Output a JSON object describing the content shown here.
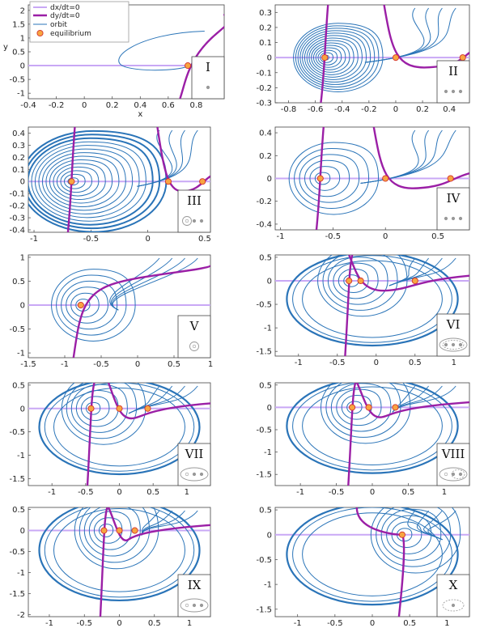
{
  "legend": {
    "items": [
      {
        "label": "dx/dt=0",
        "color": "#c9a8f5",
        "kind": "line"
      },
      {
        "label": "dy/dt=0",
        "color": "#9b1fa6",
        "kind": "line"
      },
      {
        "label": "orbit",
        "color": "#2a74b8",
        "kind": "line"
      },
      {
        "label": "equilibrium",
        "color": "#f7a541",
        "kind": "marker"
      }
    ]
  },
  "colors": {
    "orbit": "#2a74b8",
    "xnull": "#c9a8f5",
    "ynull": "#9b1fa6",
    "eq_fill": "#f7a541",
    "eq_stroke": "#d4322c",
    "inset": "#999999"
  },
  "chart_data": [
    {
      "id": "I",
      "type": "line",
      "xlabel": "x",
      "ylabel": "y",
      "xlim": [
        -0.4,
        1.0
      ],
      "ylim": [
        -1.2,
        2.2
      ],
      "xticks": [
        "-0.4",
        "-0.2",
        "0",
        "0.2",
        "0.4",
        "0.6",
        "0.8"
      ],
      "yticks": [
        "-1",
        "-0.5",
        "0",
        "0.5",
        "1",
        "1.5",
        "2"
      ],
      "equilibria": [
        [
          0.74,
          0.0
        ]
      ],
      "inset_dots": 1,
      "inset_ring": "none"
    },
    {
      "id": "II",
      "type": "line",
      "xlim": [
        -0.9,
        0.55
      ],
      "ylim": [
        -0.3,
        0.35
      ],
      "xticks": [
        "-0.8",
        "-0.6",
        "-0.4",
        "-0.2",
        "0",
        "0.2",
        "0.4"
      ],
      "yticks": [
        "-0.3",
        "-0.2",
        "-0.1",
        "0",
        "0.1",
        "0.2",
        "0.3"
      ],
      "equilibria": [
        [
          -0.53,
          0.0
        ],
        [
          0.0,
          0.0
        ],
        [
          0.5,
          0.0
        ]
      ],
      "inset_dots": 3,
      "inset_ring": "none"
    },
    {
      "id": "III",
      "type": "line",
      "xlim": [
        -1.05,
        0.55
      ],
      "ylim": [
        -0.42,
        0.45
      ],
      "xticks": [
        "-1",
        "-0.5",
        "0",
        "0.5"
      ],
      "yticks": [
        "-0.4",
        "-0.3",
        "-0.2",
        "-0.1",
        "0",
        "0.1",
        "0.2",
        "0.3",
        "0.4"
      ],
      "equilibria": [
        [
          -0.67,
          0.0
        ],
        [
          0.18,
          0.0
        ],
        [
          0.48,
          0.0
        ]
      ],
      "inset_dots": 3,
      "inset_ring": "first"
    },
    {
      "id": "IV",
      "type": "line",
      "xlim": [
        -1.05,
        0.8
      ],
      "ylim": [
        -0.45,
        0.45
      ],
      "xticks": [
        "-1",
        "-0.5",
        "0",
        "0.5"
      ],
      "yticks": [
        "-0.4",
        "-0.2",
        "0",
        "0.2",
        "0.4"
      ],
      "equilibria": [
        [
          -0.62,
          0.0
        ],
        [
          0.0,
          0.0
        ],
        [
          0.62,
          0.0
        ]
      ],
      "inset_dots": 3,
      "inset_ring": "none"
    },
    {
      "id": "V",
      "type": "line",
      "xlim": [
        -1.5,
        1.0
      ],
      "ylim": [
        -1.1,
        1.05
      ],
      "xticks": [
        "-1.5",
        "-1",
        "-0.5",
        "0",
        "0.5",
        "1"
      ],
      "yticks": [
        "-1",
        "-0.5",
        "0",
        "0.5",
        "1"
      ],
      "equilibria": [
        [
          -0.78,
          0.0
        ]
      ],
      "inset_dots": 1,
      "inset_ring": "first"
    },
    {
      "id": "VI",
      "type": "line",
      "xlim": [
        -1.3,
        1.2
      ],
      "ylim": [
        -1.6,
        0.55
      ],
      "xticks": [
        "-1",
        "-0.5",
        "0",
        "0.5",
        "1"
      ],
      "yticks": [
        "-1.5",
        "-1",
        "-0.5",
        "0",
        "0.5"
      ],
      "equilibria": [
        [
          -0.35,
          0.0
        ],
        [
          -0.2,
          0.0
        ],
        [
          0.5,
          0.0
        ]
      ],
      "inset_dots": 3,
      "inset_ring": "double"
    },
    {
      "id": "VII",
      "type": "line",
      "xlim": [
        -1.35,
        1.35
      ],
      "ylim": [
        -1.65,
        0.55
      ],
      "xticks": [
        "-1",
        "-0.5",
        "0",
        "0.5",
        "1"
      ],
      "yticks": [
        "-1.5",
        "-1",
        "-0.5",
        "0",
        "0.5"
      ],
      "equilibria": [
        [
          -0.42,
          0.0
        ],
        [
          0.0,
          0.0
        ],
        [
          0.42,
          0.0
        ]
      ],
      "inset_dots": 3,
      "inset_ring": "outer"
    },
    {
      "id": "VIII",
      "type": "line",
      "xlim": [
        -1.35,
        1.35
      ],
      "ylim": [
        -1.75,
        0.55
      ],
      "xticks": [
        "-1",
        "-0.5",
        "0",
        "0.5",
        "1"
      ],
      "yticks": [
        "-1.5",
        "-1",
        "-0.5",
        "0",
        "0.5"
      ],
      "equilibria": [
        [
          -0.28,
          0.0
        ],
        [
          -0.05,
          0.0
        ],
        [
          0.32,
          0.0
        ]
      ],
      "inset_dots": 3,
      "inset_ring": "outer-dashed-right"
    },
    {
      "id": "IX",
      "type": "line",
      "xlim": [
        -1.3,
        1.3
      ],
      "ylim": [
        -2.05,
        0.55
      ],
      "xticks": [
        "-1",
        "-0.5",
        "0",
        "0.5",
        "1"
      ],
      "yticks": [
        "-2",
        "-1.5",
        "-1",
        "-0.5",
        "0",
        "0.5"
      ],
      "equilibria": [
        [
          -0.22,
          0.0
        ],
        [
          0.0,
          0.0
        ],
        [
          0.22,
          0.0
        ]
      ],
      "inset_dots": 3,
      "inset_ring": "outer"
    },
    {
      "id": "X",
      "type": "line",
      "xlim": [
        -1.3,
        1.3
      ],
      "ylim": [
        -1.65,
        0.55
      ],
      "xticks": [
        "-1",
        "-0.5",
        "0",
        "0.5",
        "1"
      ],
      "yticks": [
        "-1.5",
        "-1",
        "-0.5",
        "0",
        "0.5"
      ],
      "equilibria": [
        [
          0.4,
          0.0
        ]
      ],
      "inset_dots": 1,
      "inset_ring": "dashed"
    }
  ]
}
